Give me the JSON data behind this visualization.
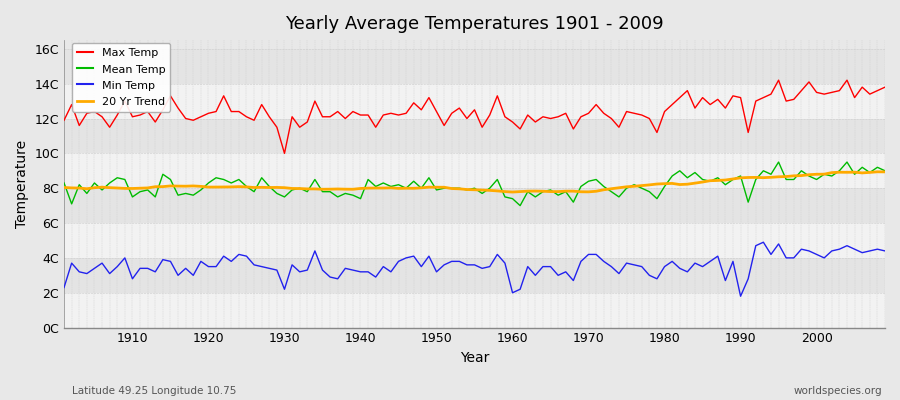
{
  "title": "Yearly Average Temperatures 1901 - 2009",
  "xlabel": "Year",
  "ylabel": "Temperature",
  "lat_lon_label": "Latitude 49.25 Longitude 10.75",
  "source_label": "worldspecies.org",
  "years_start": 1901,
  "years_end": 2009,
  "yticks": [
    0,
    2,
    4,
    6,
    8,
    10,
    12,
    14,
    16
  ],
  "ytick_labels": [
    "0C",
    "2C",
    "4C",
    "6C",
    "8C",
    "10C",
    "12C",
    "14C",
    "16C"
  ],
  "xticks": [
    1910,
    1920,
    1930,
    1940,
    1950,
    1960,
    1970,
    1980,
    1990,
    2000
  ],
  "ylim": [
    0,
    16.5
  ],
  "xlim": [
    1901,
    2009
  ],
  "colors": {
    "max": "#ff0000",
    "mean": "#00bb00",
    "min": "#2222ee",
    "trend": "#ffaa00",
    "fig_bg": "#e8e8e8",
    "plot_bg": "#e8e8e8",
    "band_light": "#f0f0f0",
    "band_dark": "#e0e0e0",
    "grid": "#bbbbbb"
  },
  "legend_labels": [
    "Max Temp",
    "Mean Temp",
    "Min Temp",
    "20 Yr Trend"
  ],
  "max_temp": [
    11.9,
    12.8,
    11.6,
    12.3,
    12.4,
    12.1,
    11.5,
    12.2,
    13.0,
    12.1,
    12.2,
    12.4,
    11.8,
    12.5,
    13.3,
    12.6,
    12.0,
    11.9,
    12.1,
    12.3,
    12.4,
    13.3,
    12.4,
    12.4,
    12.1,
    11.9,
    12.8,
    12.1,
    11.5,
    10.0,
    12.1,
    11.5,
    11.8,
    13.0,
    12.1,
    12.1,
    12.4,
    12.0,
    12.4,
    12.2,
    12.2,
    11.5,
    12.2,
    12.3,
    12.2,
    12.3,
    12.9,
    12.5,
    13.2,
    12.4,
    11.6,
    12.3,
    12.6,
    12.0,
    12.5,
    11.5,
    12.2,
    13.3,
    12.1,
    11.8,
    11.4,
    12.2,
    11.8,
    12.1,
    12.0,
    12.1,
    12.3,
    11.4,
    12.1,
    12.3,
    12.8,
    12.3,
    12.0,
    11.5,
    12.4,
    12.3,
    12.2,
    12.0,
    11.2,
    12.4,
    12.8,
    13.2,
    13.6,
    12.6,
    13.2,
    12.8,
    13.1,
    12.6,
    13.3,
    13.2,
    11.2,
    13.0,
    13.2,
    13.4,
    14.2,
    13.0,
    13.1,
    13.6,
    14.1,
    13.5,
    13.4,
    13.5,
    13.6,
    14.2,
    13.2,
    13.8,
    13.4,
    13.6,
    13.8
  ],
  "mean_temp": [
    8.3,
    7.1,
    8.2,
    7.7,
    8.3,
    7.9,
    8.3,
    8.6,
    8.5,
    7.5,
    7.8,
    7.9,
    7.5,
    8.8,
    8.5,
    7.6,
    7.7,
    7.6,
    7.9,
    8.3,
    8.6,
    8.5,
    8.3,
    8.5,
    8.1,
    7.8,
    8.6,
    8.1,
    7.7,
    7.5,
    7.9,
    8.0,
    7.8,
    8.5,
    7.8,
    7.8,
    7.5,
    7.7,
    7.6,
    7.4,
    8.5,
    8.1,
    8.3,
    8.1,
    8.2,
    8.0,
    8.4,
    8.0,
    8.6,
    7.9,
    8.0,
    8.0,
    8.0,
    7.9,
    8.0,
    7.7,
    8.0,
    8.5,
    7.5,
    7.4,
    7.0,
    7.8,
    7.5,
    7.8,
    7.9,
    7.6,
    7.8,
    7.2,
    8.1,
    8.4,
    8.5,
    8.1,
    7.8,
    7.5,
    8.0,
    8.2,
    8.0,
    7.8,
    7.4,
    8.1,
    8.7,
    9.0,
    8.6,
    8.9,
    8.5,
    8.4,
    8.6,
    8.2,
    8.5,
    8.7,
    7.2,
    8.5,
    9.0,
    8.8,
    9.5,
    8.5,
    8.5,
    9.0,
    8.7,
    8.5,
    8.8,
    8.7,
    9.0,
    9.5,
    8.8,
    9.2,
    8.9,
    9.2,
    9.0
  ],
  "min_temp": [
    2.3,
    3.7,
    3.2,
    3.1,
    3.4,
    3.7,
    3.1,
    3.5,
    4.0,
    2.8,
    3.4,
    3.4,
    3.2,
    3.9,
    3.8,
    3.0,
    3.4,
    3.0,
    3.8,
    3.5,
    3.5,
    4.1,
    3.8,
    4.2,
    4.1,
    3.6,
    3.5,
    3.4,
    3.3,
    2.2,
    3.6,
    3.2,
    3.3,
    4.4,
    3.3,
    2.9,
    2.8,
    3.4,
    3.3,
    3.2,
    3.2,
    2.9,
    3.5,
    3.2,
    3.8,
    4.0,
    4.1,
    3.5,
    4.1,
    3.2,
    3.6,
    3.8,
    3.8,
    3.6,
    3.6,
    3.4,
    3.5,
    4.2,
    3.7,
    2.0,
    2.2,
    3.5,
    3.0,
    3.5,
    3.5,
    3.0,
    3.2,
    2.7,
    3.8,
    4.2,
    4.2,
    3.8,
    3.5,
    3.1,
    3.7,
    3.6,
    3.5,
    3.0,
    2.8,
    3.5,
    3.8,
    3.4,
    3.2,
    3.7,
    3.5,
    3.8,
    4.1,
    2.7,
    3.8,
    1.8,
    2.8,
    4.7,
    4.9,
    4.2,
    4.8,
    4.0,
    4.0,
    4.5,
    4.4,
    4.2,
    4.0,
    4.4,
    4.5,
    4.7,
    4.5,
    4.3,
    4.4,
    4.5,
    4.4
  ]
}
